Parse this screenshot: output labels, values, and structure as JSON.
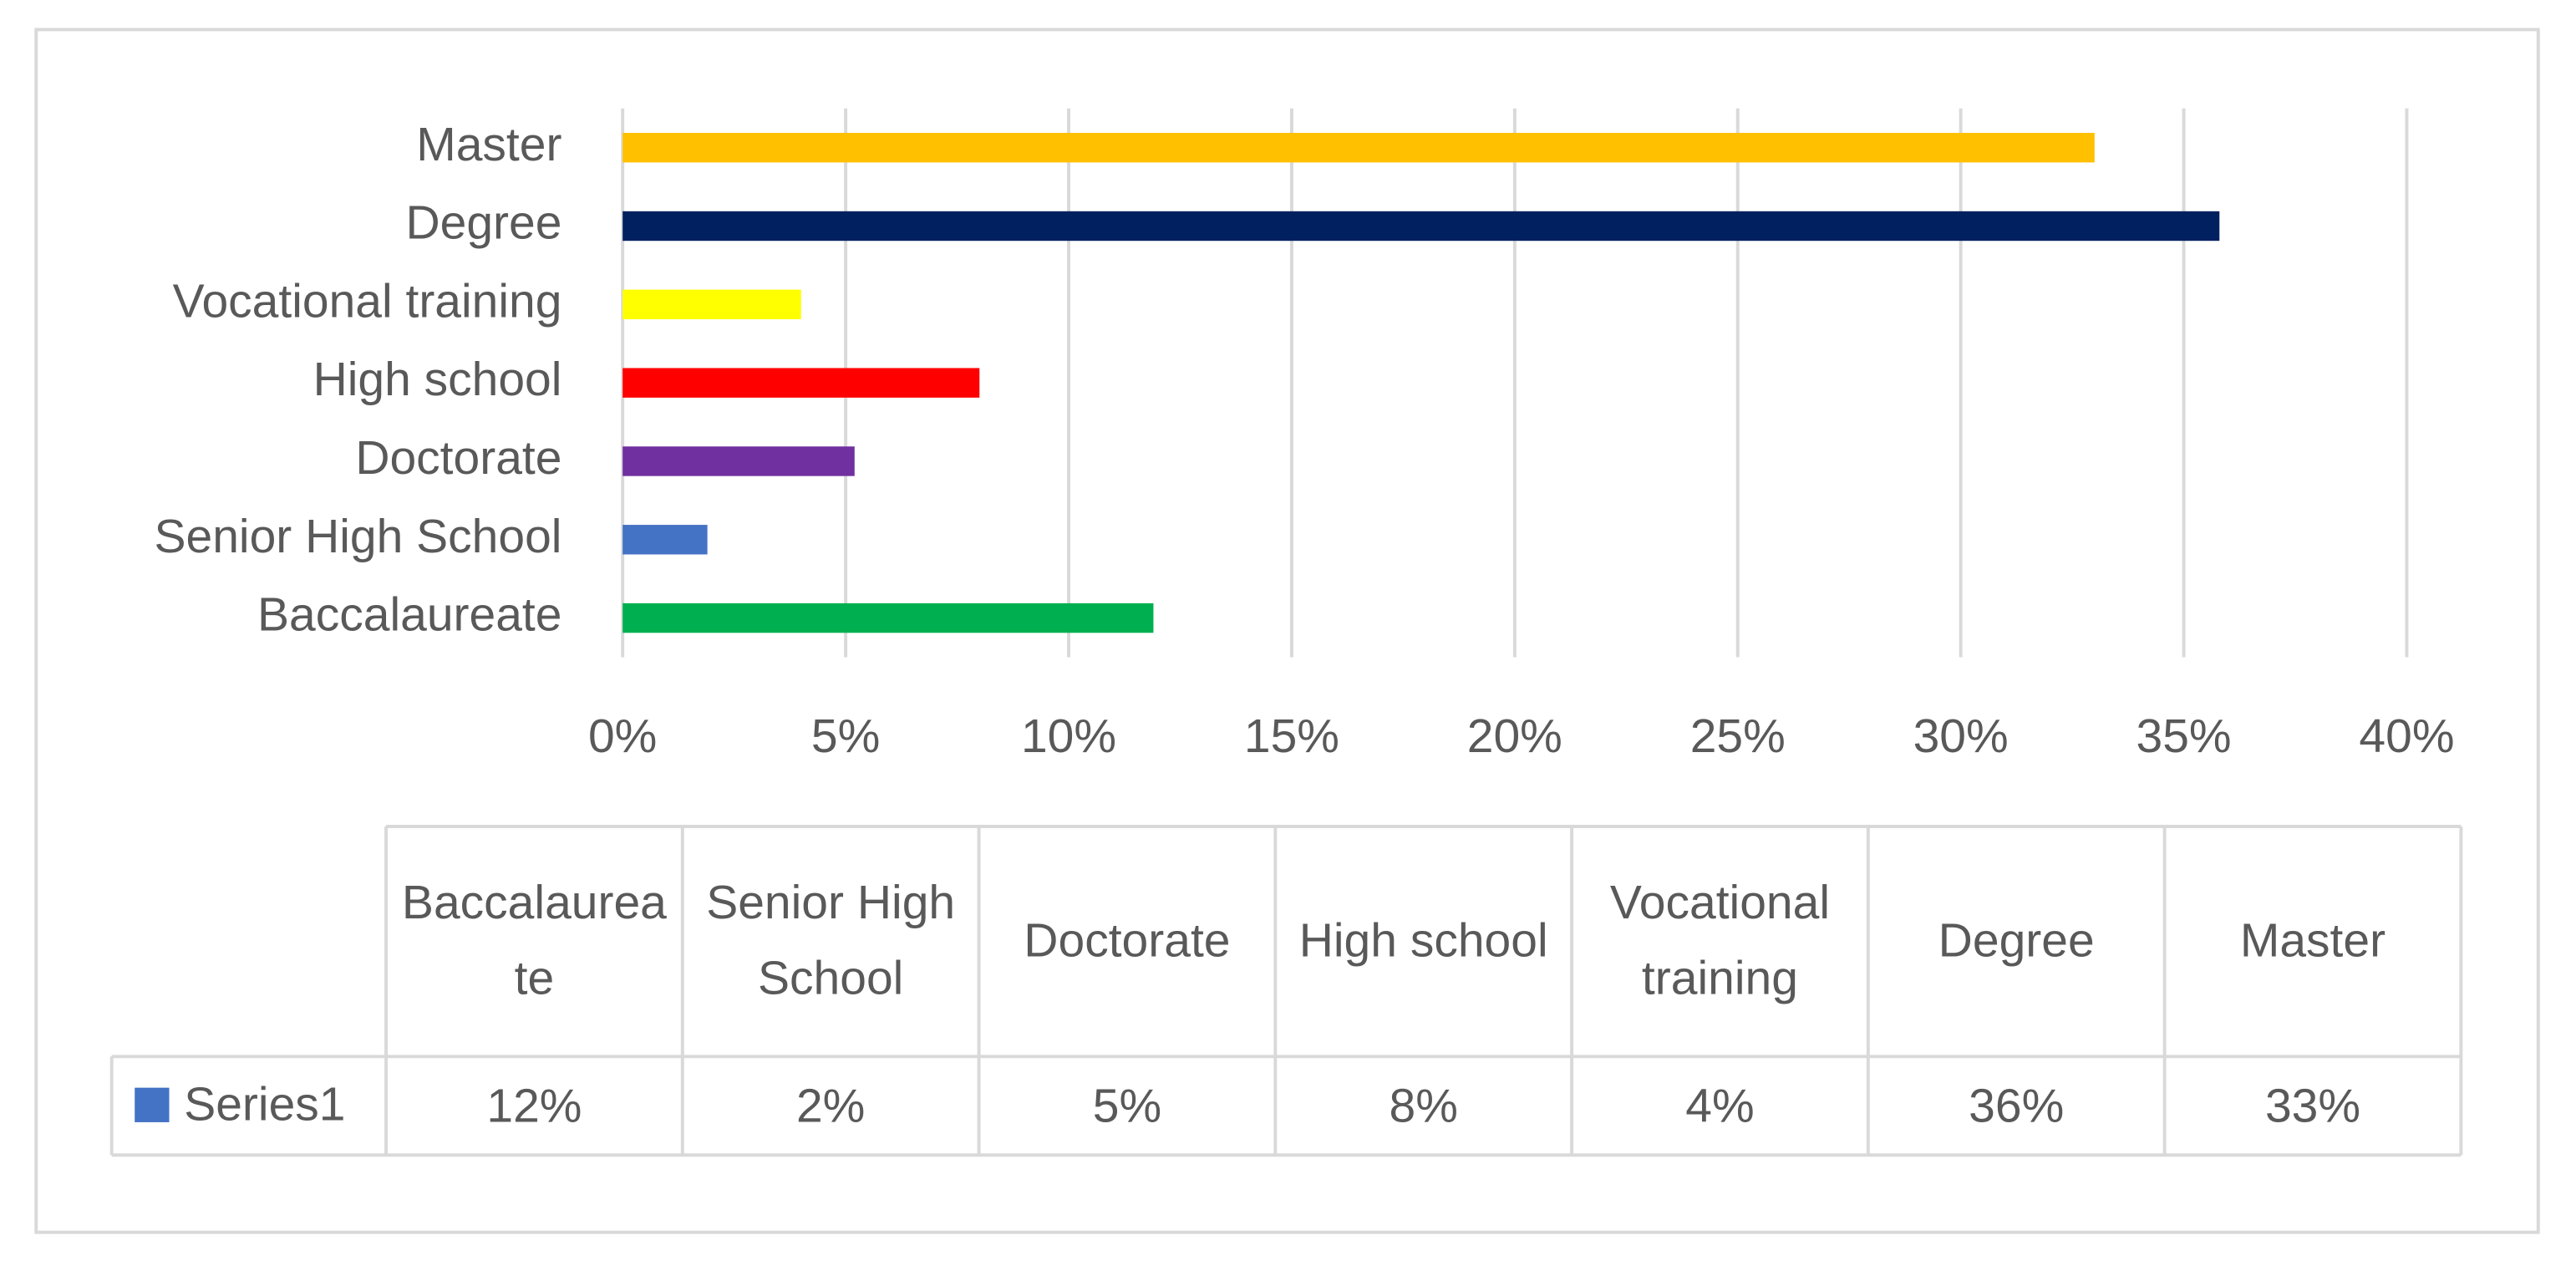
{
  "chart_data": {
    "type": "bar",
    "orientation": "horizontal",
    "categories": [
      "Baccalaureate",
      "Senior High School",
      "Doctorate",
      "High school",
      "Vocational training",
      "Degree",
      "Master"
    ],
    "series": [
      {
        "name": "Series1",
        "color": "#4472c4",
        "values": [
          11.9,
          1.9,
          5.2,
          8.0,
          4.0,
          35.8,
          33.0
        ],
        "value_labels": [
          "12%",
          "2%",
          "5%",
          "8%",
          "4%",
          "36%",
          "33%"
        ]
      }
    ],
    "bar_colors": [
      "#00b050",
      "#4472c4",
      "#7030a0",
      "#ff0000",
      "#ffff00",
      "#002060",
      "#ffc000"
    ],
    "xlim": [
      0,
      40
    ],
    "xticks": [
      {
        "value": 0,
        "label": "0%"
      },
      {
        "value": 5,
        "label": "5%"
      },
      {
        "value": 10,
        "label": "10%"
      },
      {
        "value": 15,
        "label": "15%"
      },
      {
        "value": 20,
        "label": "20%"
      },
      {
        "value": 25,
        "label": "25%"
      },
      {
        "value": 30,
        "label": "30%"
      },
      {
        "value": 35,
        "label": "35%"
      },
      {
        "value": 40,
        "label": "40%"
      }
    ],
    "grid": true,
    "data_table": true
  }
}
